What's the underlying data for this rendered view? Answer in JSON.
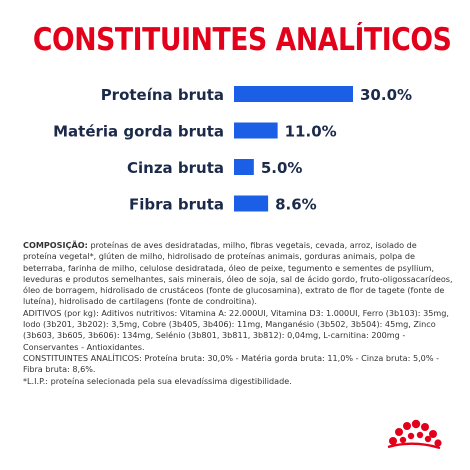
{
  "title": "CONSTITUINTES ANALÍTICOS",
  "colors": {
    "title": "#e2001a",
    "bar": "#1b5fe6",
    "label": "#1c2a4a",
    "logo": "#e2001a"
  },
  "chart_data": {
    "type": "bar",
    "orientation": "horizontal",
    "categories": [
      "Proteína bruta",
      "Matéria gorda bruta",
      "Cinza bruta",
      "Fibra bruta"
    ],
    "values": [
      30.0,
      11.0,
      5.0,
      8.6
    ],
    "value_labels": [
      "30.0%",
      "11.0%",
      "5.0%",
      "8.6%"
    ],
    "title": "CONSTITUINTES ANALÍTICOS",
    "grid": false,
    "xlim": [
      0,
      30
    ]
  },
  "composition": {
    "label": "COMPOSIÇÃO:",
    "text": "proteínas de aves desidratadas, milho, fibras vegetais, cevada, arroz, isolado de proteína vegetal*, glúten de milho, hidrolisado de proteínas animais, gorduras animais, polpa de beterraba, farinha de milho, celulose desidratada, óleo de peixe, tegumento e sementes de psyllium, leveduras e produtos semelhantes, sais minerais, óleo de soja, sal de ácido gordo, fruto-oligossacarídeos, óleo de borragem, hidrolisado de crustáceos (fonte de glucosamina), extrato de flor de tagete (fonte de luteína), hidrolisado de cartilagens (fonte de condroitina).",
    "additives": "ADITIVOS (por kg): Aditivos nutritivos: Vitamina A: 22.000UI, Vitamina D3: 1.000UI, Ferro (3b103): 35mg, Iodo (3b201, 3b202): 3,5mg, Cobre (3b405, 3b406): 11mg, Manganésio (3b502, 3b504): 45mg, Zinco (3b603, 3b605, 3b606): 134mg, Selénio (3b801, 3b811, 3b812): 0,04mg, L-carnitina: 200mg - Conservantes - Antioxidantes.",
    "analytical": "CONSTITUINTES ANALÍTICOS: Proteína bruta: 30,0% - Matéria gorda bruta: 11,0% - Cinza bruta: 5,0% - Fibra bruta: 8,6%.",
    "footnote": "*L.I.P.: proteína selecionada pela sua elevadíssima digestibilidade."
  },
  "logo_icon": "royal-canin-crown-icon"
}
